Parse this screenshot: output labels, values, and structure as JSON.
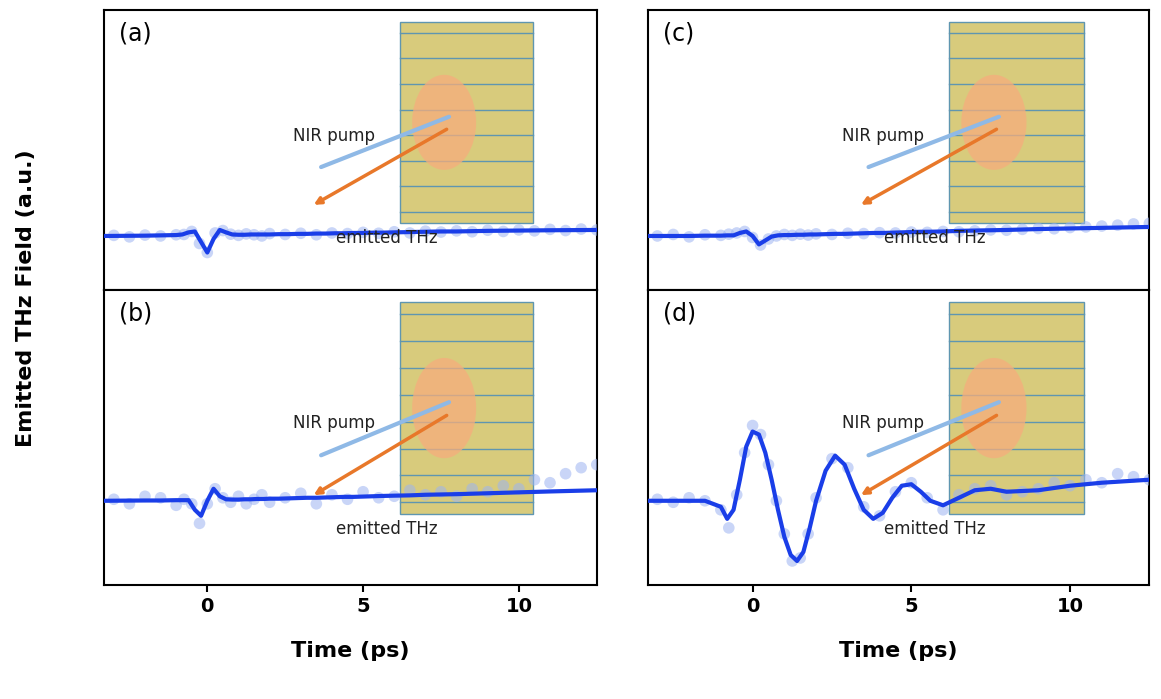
{
  "ylabel": "Emitted THz Field (a.u.)",
  "chart_data": [
    {
      "type": "scatter",
      "title": "(a)",
      "xlim": [
        -3.3,
        12.5
      ],
      "ylim": [
        -1.8,
        7.5
      ],
      "tick_labels": false,
      "annotations": [
        "NIR pump",
        "emitted THz"
      ],
      "series": [
        {
          "type": "scatter",
          "color": "#9db4f2",
          "marker": "o",
          "x": [
            -3,
            -2.5,
            -2,
            -1.5,
            -1,
            -0.75,
            -0.5,
            -0.25,
            0,
            0.25,
            0.5,
            0.75,
            1,
            1.25,
            1.5,
            1.75,
            2,
            2.5,
            3,
            3.5,
            4,
            4.5,
            5,
            5.5,
            6,
            6.5,
            7,
            7.5,
            8,
            8.5,
            9,
            9.5,
            10,
            10.5,
            11,
            11.5,
            12,
            12.5
          ],
          "values": [
            0.02,
            -0.03,
            0.03,
            0.0,
            0.04,
            0.05,
            0.15,
            -0.25,
            -0.55,
            0.1,
            0.18,
            0.06,
            0.02,
            0.07,
            0.04,
            0.0,
            0.08,
            0.05,
            0.09,
            0.04,
            0.1,
            0.08,
            0.12,
            0.09,
            0.14,
            0.1,
            0.16,
            0.13,
            0.17,
            0.14,
            0.19,
            0.15,
            0.2,
            0.17,
            0.22,
            0.18,
            0.23,
            0.2
          ]
        },
        {
          "type": "line",
          "color": "#1a3ee8",
          "line_style": "solid",
          "x": [
            -3.3,
            -2,
            -1.5,
            -1.0,
            -0.8,
            -0.6,
            -0.4,
            -0.2,
            0,
            0.2,
            0.4,
            0.6,
            0.8,
            1.0,
            1.2,
            1.4,
            1.6,
            1.8,
            2.0,
            2.3,
            2.6,
            2.9,
            3.2,
            3.5,
            3.8,
            4.1,
            4.4,
            4.7,
            5.0,
            5.3,
            5.6,
            6.0,
            6.5,
            7.0,
            7.5,
            8,
            9,
            10,
            11,
            12.5
          ],
          "values": [
            0,
            0.01,
            0.02,
            0.03,
            0.05,
            0.12,
            0.15,
            -0.2,
            -0.55,
            -0.1,
            0.2,
            0.12,
            0.05,
            0.04,
            0.04,
            0.05,
            0.05,
            0.05,
            0.05,
            0.06,
            0.06,
            0.07,
            0.07,
            0.08,
            0.08,
            0.09,
            0.09,
            0.1,
            0.1,
            0.11,
            0.11,
            0.12,
            0.13,
            0.14,
            0.15,
            0.15,
            0.17,
            0.18,
            0.19,
            0.2
          ]
        }
      ]
    },
    {
      "type": "scatter",
      "title": "(b)",
      "xlabel": "Time (ps)",
      "xlim": [
        -3.3,
        12.5
      ],
      "xticks": [
        0,
        5,
        10
      ],
      "ylim": [
        -2.8,
        7.0
      ],
      "tick_labels": "x",
      "annotations": [
        "NIR pump",
        "emitted THz"
      ],
      "series": [
        {
          "type": "scatter",
          "color": "#9db4f2",
          "marker": "o",
          "x": [
            -3,
            -2.5,
            -2,
            -1.5,
            -1,
            -0.75,
            -0.5,
            -0.25,
            0,
            0.25,
            0.5,
            0.75,
            1,
            1.25,
            1.5,
            1.75,
            2,
            2.5,
            3,
            3.5,
            4,
            4.5,
            5,
            5.5,
            6,
            6.5,
            7,
            7.5,
            8,
            8.5,
            9,
            9.5,
            10,
            10.5,
            11,
            11.5,
            12,
            12.5
          ],
          "values": [
            0.05,
            -0.1,
            0.15,
            0.1,
            -0.15,
            0.05,
            -0.1,
            -0.75,
            -0.1,
            0.4,
            0.1,
            -0.05,
            0.15,
            -0.1,
            0.05,
            0.2,
            -0.05,
            0.1,
            0.25,
            -0.1,
            0.2,
            0.05,
            0.3,
            0.1,
            0.15,
            0.35,
            0.2,
            0.3,
            0.15,
            0.4,
            0.3,
            0.5,
            0.4,
            0.7,
            0.6,
            0.9,
            1.1,
            1.2
          ]
        },
        {
          "type": "line",
          "color": "#1a3ee8",
          "line_style": "solid",
          "x": [
            -3.3,
            -2,
            -1.5,
            -1.0,
            -0.8,
            -0.6,
            -0.4,
            -0.2,
            0,
            0.2,
            0.4,
            0.6,
            0.8,
            1.0,
            1.2,
            1.4,
            1.6,
            1.8,
            2.0,
            2.3,
            2.6,
            2.9,
            3.2,
            3.5,
            3.8,
            4.1,
            4.4,
            4.7,
            5.0,
            5.3,
            5.6,
            6.0,
            6.5,
            7.0,
            7.5,
            8,
            9,
            10,
            11,
            12.5
          ],
          "values": [
            0,
            0.01,
            0.01,
            0.02,
            0.02,
            0.02,
            -0.3,
            -0.5,
            0.0,
            0.4,
            0.15,
            0.05,
            0.04,
            0.04,
            0.05,
            0.05,
            0.06,
            0.06,
            0.07,
            0.07,
            0.08,
            0.09,
            0.1,
            0.1,
            0.11,
            0.12,
            0.13,
            0.13,
            0.14,
            0.15,
            0.16,
            0.17,
            0.18,
            0.2,
            0.21,
            0.22,
            0.25,
            0.28,
            0.31,
            0.35
          ]
        }
      ]
    },
    {
      "type": "scatter",
      "title": "(c)",
      "xlim": [
        -3.3,
        12.5
      ],
      "ylim": [
        -1.8,
        7.5
      ],
      "tick_labels": false,
      "annotations": [
        "NIR pump",
        "emitted THz"
      ],
      "series": [
        {
          "type": "scatter",
          "color": "#9db4f2",
          "marker": "o",
          "x": [
            -3,
            -2.5,
            -2,
            -1.5,
            -1,
            -0.75,
            -0.5,
            -0.25,
            0,
            0.25,
            0.5,
            0.75,
            1,
            1.25,
            1.5,
            1.75,
            2,
            2.5,
            3,
            3.5,
            4,
            4.5,
            5,
            5.5,
            6,
            6.5,
            7,
            7.5,
            8,
            8.5,
            9,
            9.5,
            10,
            10.5,
            11,
            11.5,
            12,
            12.5
          ],
          "values": [
            0.0,
            0.05,
            -0.03,
            0.04,
            0.02,
            0.06,
            0.1,
            0.15,
            -0.05,
            -0.3,
            -0.1,
            0.0,
            0.05,
            0.02,
            0.06,
            0.03,
            0.07,
            0.05,
            0.09,
            0.08,
            0.11,
            0.1,
            0.13,
            0.12,
            0.15,
            0.14,
            0.17,
            0.2,
            0.19,
            0.22,
            0.25,
            0.24,
            0.28,
            0.3,
            0.33,
            0.36,
            0.4,
            0.42
          ]
        },
        {
          "type": "line",
          "color": "#1a3ee8",
          "line_style": "solid",
          "x": [
            -3.3,
            -2,
            -1.5,
            -1.0,
            -0.8,
            -0.6,
            -0.4,
            -0.2,
            0,
            0.2,
            0.4,
            0.6,
            0.8,
            1.0,
            1.2,
            1.4,
            1.6,
            1.8,
            2.0,
            2.3,
            2.6,
            2.9,
            3.2,
            3.5,
            3.8,
            4.1,
            4.4,
            4.7,
            5.0,
            5.3,
            5.6,
            6.0,
            6.5,
            7.0,
            7.5,
            8,
            9,
            10,
            11,
            12.5
          ],
          "values": [
            0,
            0.0,
            0.01,
            0.01,
            0.02,
            0.02,
            0.1,
            0.15,
            0.0,
            -0.28,
            -0.15,
            -0.02,
            0.02,
            0.03,
            0.03,
            0.04,
            0.04,
            0.05,
            0.05,
            0.06,
            0.07,
            0.07,
            0.08,
            0.09,
            0.1,
            0.1,
            0.11,
            0.12,
            0.13,
            0.14,
            0.14,
            0.15,
            0.17,
            0.18,
            0.19,
            0.2,
            0.23,
            0.25,
            0.27,
            0.3
          ]
        }
      ]
    },
    {
      "type": "scatter",
      "title": "(d)",
      "xlabel": "Time (ps)",
      "xlim": [
        -3.3,
        12.5
      ],
      "xticks": [
        0,
        5,
        10
      ],
      "ylim": [
        -2.8,
        7.0
      ],
      "tick_labels": "x",
      "annotations": [
        "NIR pump",
        "emitted THz"
      ],
      "series": [
        {
          "type": "scatter",
          "color": "#9db4f2",
          "marker": "o",
          "x": [
            -3,
            -2.5,
            -2,
            -1.5,
            -1,
            -0.75,
            -0.5,
            -0.25,
            0,
            0.25,
            0.5,
            0.75,
            1,
            1.25,
            1.5,
            1.75,
            2,
            2.5,
            3,
            3.5,
            4,
            4.5,
            5,
            5.5,
            6,
            6.5,
            7,
            7.5,
            8,
            8.5,
            9,
            9.5,
            10,
            10.5,
            11,
            11.5,
            12,
            12.5
          ],
          "values": [
            0.05,
            -0.05,
            0.1,
            0.0,
            -0.3,
            -0.9,
            0.2,
            1.6,
            2.5,
            2.2,
            1.2,
            0.0,
            -1.1,
            -2.0,
            -1.9,
            -1.1,
            0.1,
            1.4,
            1.1,
            -0.2,
            -0.5,
            0.3,
            0.6,
            0.1,
            -0.3,
            0.2,
            0.4,
            0.5,
            0.2,
            0.3,
            0.4,
            0.6,
            0.5,
            0.7,
            0.6,
            0.9,
            0.8,
            0.7
          ]
        },
        {
          "type": "line",
          "color": "#1a3ee8",
          "line_style": "solid",
          "x": [
            -3.3,
            -2,
            -1.5,
            -1.0,
            -0.8,
            -0.6,
            -0.4,
            -0.2,
            0,
            0.2,
            0.4,
            0.6,
            0.8,
            1.0,
            1.2,
            1.4,
            1.6,
            1.8,
            2.0,
            2.3,
            2.6,
            2.9,
            3.2,
            3.5,
            3.8,
            4.1,
            4.4,
            4.7,
            5.0,
            5.3,
            5.6,
            6.0,
            6.5,
            7.0,
            7.5,
            8,
            9,
            10,
            11,
            12.5
          ],
          "values": [
            0,
            0,
            0,
            -0.2,
            -0.6,
            -0.3,
            0.7,
            1.8,
            2.3,
            2.2,
            1.6,
            0.7,
            -0.3,
            -1.2,
            -1.8,
            -2.0,
            -1.7,
            -0.9,
            0.0,
            1.0,
            1.5,
            1.2,
            0.4,
            -0.3,
            -0.6,
            -0.4,
            0.1,
            0.5,
            0.55,
            0.3,
            0.0,
            -0.15,
            0.1,
            0.35,
            0.4,
            0.3,
            0.35,
            0.5,
            0.6,
            0.7
          ]
        }
      ]
    }
  ]
}
